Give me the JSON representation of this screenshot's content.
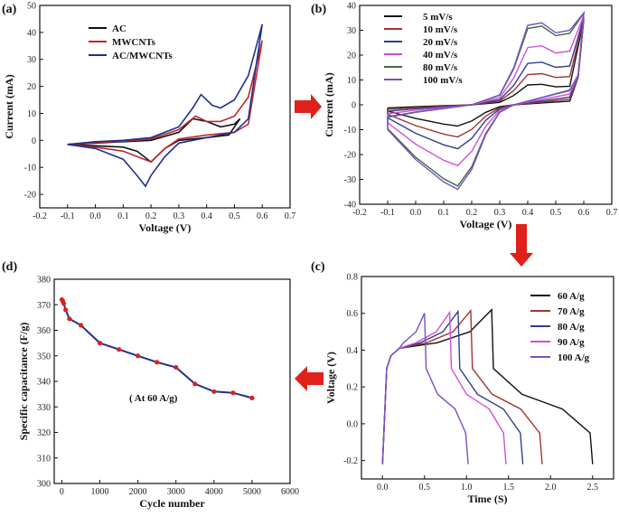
{
  "chart_data": [
    {
      "panel": "(a)",
      "type": "line",
      "xlabel": "Voltage (V)",
      "ylabel": "Current (mA)",
      "xlim": [
        -0.2,
        0.7
      ],
      "ylim": [
        -25,
        50
      ],
      "xticks": [
        "-0.2",
        "-0.1",
        "0.0",
        "0.1",
        "0.2",
        "0.3",
        "0.4",
        "0.5",
        "0.6",
        "0.7"
      ],
      "yticks": [
        "-20",
        "-10",
        "0",
        "10",
        "20",
        "30",
        "40",
        "50"
      ],
      "series": [
        {
          "name": "AC",
          "color": "#111111",
          "upper": [
            [
              -0.1,
              -1.5
            ],
            [
              0.0,
              -1
            ],
            [
              0.1,
              -0.5
            ],
            [
              0.2,
              0
            ],
            [
              0.3,
              3
            ],
            [
              0.35,
              8
            ],
            [
              0.4,
              7
            ],
            [
              0.45,
              5
            ],
            [
              0.5,
              6
            ],
            [
              0.52,
              8
            ]
          ],
          "lower": [
            [
              0.52,
              8
            ],
            [
              0.48,
              2
            ],
            [
              0.4,
              1
            ],
            [
              0.3,
              0
            ],
            [
              0.25,
              -3
            ],
            [
              0.2,
              -8
            ],
            [
              0.15,
              -4
            ],
            [
              0.1,
              -2.5
            ],
            [
              0.0,
              -2
            ],
            [
              -0.1,
              -1.5
            ]
          ]
        },
        {
          "name": "MWCNTs",
          "color": "#c0282d",
          "upper": [
            [
              -0.1,
              -1.5
            ],
            [
              0.0,
              -0.8
            ],
            [
              0.1,
              -0.3
            ],
            [
              0.2,
              0.5
            ],
            [
              0.3,
              4
            ],
            [
              0.36,
              9
            ],
            [
              0.4,
              7
            ],
            [
              0.45,
              7
            ],
            [
              0.5,
              9
            ],
            [
              0.55,
              16
            ],
            [
              0.6,
              37
            ]
          ],
          "lower": [
            [
              0.6,
              37
            ],
            [
              0.55,
              6
            ],
            [
              0.5,
              3
            ],
            [
              0.4,
              2
            ],
            [
              0.3,
              0.5
            ],
            [
              0.25,
              -3
            ],
            [
              0.2,
              -8
            ],
            [
              0.15,
              -6
            ],
            [
              0.1,
              -4
            ],
            [
              0.0,
              -2.5
            ],
            [
              -0.1,
              -1.5
            ]
          ]
        },
        {
          "name": "AC/MWCNTs",
          "color": "#1f2f8f",
          "upper": [
            [
              -0.1,
              -1.5
            ],
            [
              0.0,
              -0.5
            ],
            [
              0.1,
              0
            ],
            [
              0.2,
              1
            ],
            [
              0.3,
              5
            ],
            [
              0.35,
              12
            ],
            [
              0.38,
              17
            ],
            [
              0.42,
              13
            ],
            [
              0.45,
              12
            ],
            [
              0.5,
              15
            ],
            [
              0.55,
              24
            ],
            [
              0.6,
              43
            ]
          ],
          "lower": [
            [
              0.6,
              43
            ],
            [
              0.55,
              8
            ],
            [
              0.5,
              3
            ],
            [
              0.4,
              1
            ],
            [
              0.3,
              -1
            ],
            [
              0.25,
              -6
            ],
            [
              0.2,
              -13
            ],
            [
              0.18,
              -17
            ],
            [
              0.15,
              -13
            ],
            [
              0.1,
              -7
            ],
            [
              0.0,
              -3
            ],
            [
              -0.1,
              -1.5
            ]
          ]
        }
      ]
    },
    {
      "panel": "(b)",
      "type": "line",
      "xlabel": "Voltage (V)",
      "ylabel": "Current (mA)",
      "xlim": [
        -0.2,
        0.7
      ],
      "ylim": [
        -40,
        40
      ],
      "xticks": [
        "-0.2",
        "-0.1",
        "0.0",
        "0.1",
        "0.2",
        "0.3",
        "0.4",
        "0.5",
        "0.6",
        "0.7"
      ],
      "yticks": [
        "-40",
        "-30",
        "-20",
        "-10",
        "0",
        "10",
        "20",
        "30",
        "40"
      ],
      "series": [
        {
          "name": "5 mV/s",
          "color": "#111111",
          "scale": 0.25
        },
        {
          "name": "10 mV/s",
          "color": "#a0342c",
          "scale": 0.38
        },
        {
          "name": "20 mV/s",
          "color": "#2f3f8f",
          "scale": 0.52
        },
        {
          "name": "40 mV/s",
          "color": "#d14fd6",
          "scale": 0.72
        },
        {
          "name": "80 mV/s",
          "color": "#3a6e44",
          "scale": 0.96
        },
        {
          "name": "100 mV/s",
          "color": "#7a4fc4",
          "scale": 1.0
        }
      ]
    },
    {
      "panel": "(c)",
      "type": "line",
      "xlabel": "Time (S)",
      "ylabel": "Voltage (V)",
      "xlim": [
        -0.25,
        2.75
      ],
      "ylim": [
        -0.3,
        0.8
      ],
      "xticks": [
        "0.0",
        "0.5",
        "1.0",
        "1.5",
        "2.0",
        "2.5"
      ],
      "yticks": [
        "-0.2",
        "0.0",
        "0.2",
        "0.4",
        "0.6",
        "0.8"
      ],
      "series": [
        {
          "name": "60 A/g",
          "color": "#111111",
          "peak_t": 1.3,
          "end_t": 2.5
        },
        {
          "name": "70 A/g",
          "color": "#a0342c",
          "peak_t": 1.05,
          "end_t": 1.9
        },
        {
          "name": "80 A/g",
          "color": "#2f3f8f",
          "peak_t": 0.9,
          "end_t": 1.67
        },
        {
          "name": "90 A/g",
          "color": "#d14fd6",
          "peak_t": 0.8,
          "end_t": 1.47
        },
        {
          "name": "100 A/g",
          "color": "#7a4fc4",
          "peak_t": 0.5,
          "end_t": 1.02
        }
      ]
    },
    {
      "panel": "(d)",
      "type": "line",
      "xlabel": "Cycle number",
      "ylabel": "Specific capacitance (F/g)",
      "xlim": [
        -200,
        6000
      ],
      "ylim": [
        300,
        380
      ],
      "xticks": [
        "0",
        "1000",
        "2000",
        "3000",
        "4000",
        "5000",
        "6000"
      ],
      "yticks": [
        "300",
        "310",
        "320",
        "330",
        "340",
        "350",
        "360",
        "370",
        "380"
      ],
      "annotation": "( At 60 A/g)",
      "x": [
        1,
        25,
        50,
        100,
        200,
        500,
        1000,
        1500,
        2000,
        2500,
        3000,
        3500,
        4000,
        4500,
        5000
      ],
      "values": [
        372,
        371.5,
        370.5,
        368,
        364.5,
        362,
        355,
        352.5,
        350,
        347.5,
        345.5,
        339,
        336,
        335.5,
        333.5
      ],
      "line_color": "#1f2f8f",
      "marker_color": "#e0201b"
    }
  ],
  "arrows": {
    "color": "#e0201b"
  }
}
